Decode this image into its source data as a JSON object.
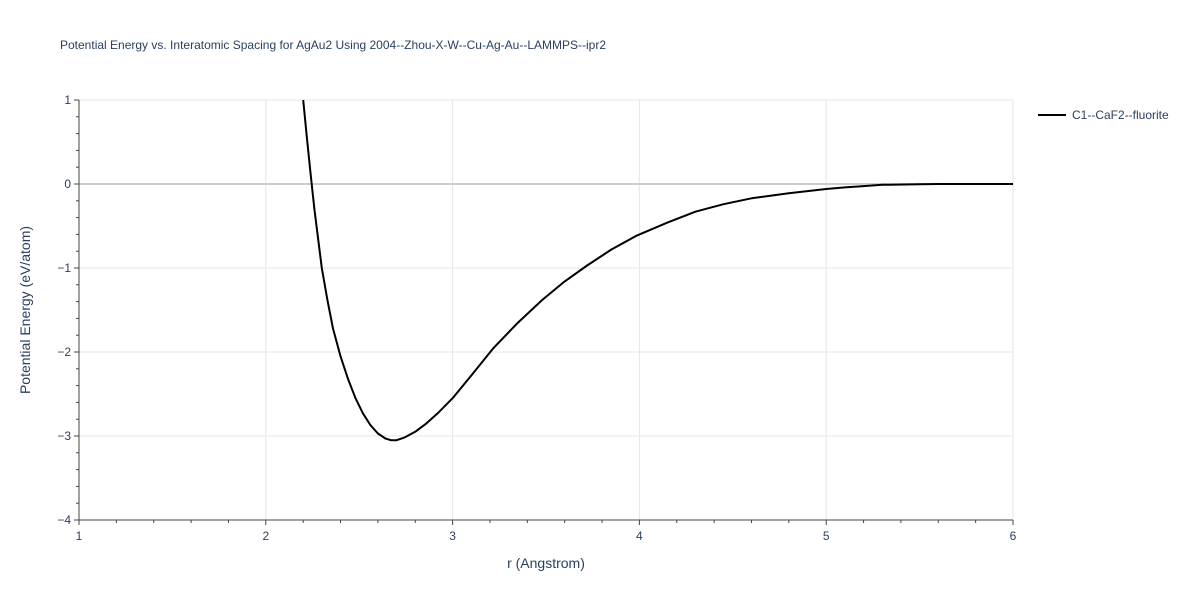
{
  "chart_data": {
    "type": "line",
    "title": "Potential Energy vs. Interatomic Spacing for AgAu2 Using 2004--Zhou-X-W--Cu-Ag-Au--LAMMPS--ipr2",
    "xlabel": "r (Angstrom)",
    "ylabel": "Potential Energy (eV/atom)",
    "xlim": [
      1,
      6
    ],
    "ylim": [
      -4,
      1
    ],
    "xticks": [
      1,
      2,
      3,
      4,
      5,
      6
    ],
    "xtick_labels": [
      "1",
      "2",
      "3",
      "4",
      "5",
      "6"
    ],
    "yticks": [
      1,
      0,
      -1,
      -2,
      -3,
      -4
    ],
    "ytick_labels": [
      "1",
      "0",
      "−1",
      "−2",
      "−3",
      "−4"
    ],
    "grid": true,
    "legend_position": "top-right",
    "series": [
      {
        "name": "C1--CaF2--fluorite",
        "color": "#000000",
        "x": [
          2.2,
          2.22,
          2.24,
          2.26,
          2.28,
          2.3,
          2.33,
          2.36,
          2.4,
          2.44,
          2.48,
          2.52,
          2.56,
          2.6,
          2.64,
          2.67,
          2.7,
          2.74,
          2.8,
          2.86,
          2.92,
          3.0,
          3.1,
          3.22,
          3.35,
          3.48,
          3.6,
          3.72,
          3.85,
          3.98,
          4.15,
          4.3,
          4.45,
          4.6,
          4.8,
          5.0,
          5.1,
          5.2,
          5.3,
          5.5,
          5.6,
          5.8,
          6.0
        ],
        "y": [
          1.0,
          0.55,
          0.12,
          -0.3,
          -0.65,
          -1.0,
          -1.38,
          -1.72,
          -2.05,
          -2.32,
          -2.55,
          -2.73,
          -2.87,
          -2.97,
          -3.03,
          -3.05,
          -3.05,
          -3.02,
          -2.95,
          -2.85,
          -2.73,
          -2.55,
          -2.28,
          -1.95,
          -1.65,
          -1.38,
          -1.16,
          -0.97,
          -0.78,
          -0.62,
          -0.46,
          -0.33,
          -0.24,
          -0.17,
          -0.11,
          -0.06,
          -0.04,
          -0.025,
          -0.01,
          -0.003,
          0.0,
          0.0,
          0.0
        ]
      }
    ]
  }
}
